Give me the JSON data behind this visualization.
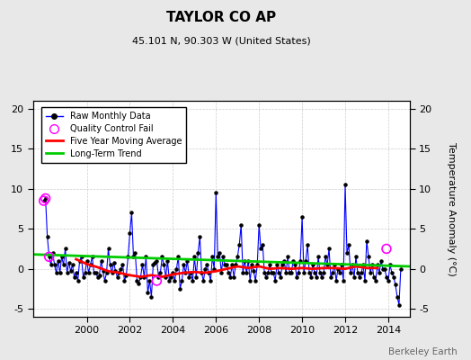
{
  "title": "TAYLOR CO AP",
  "subtitle": "45.101 N, 90.303 W (United States)",
  "ylabel": "Temperature Anomaly (°C)",
  "watermark": "Berkeley Earth",
  "ylim": [
    -6,
    21
  ],
  "yticks": [
    -5,
    0,
    5,
    10,
    15,
    20
  ],
  "xlim": [
    1997.5,
    2015.0
  ],
  "xticks": [
    2000,
    2002,
    2004,
    2006,
    2008,
    2010,
    2012,
    2014
  ],
  "raw_color": "#0000ff",
  "ma_color": "#ff0000",
  "trend_color": "#00cc00",
  "qc_color": "#ff00ff",
  "bg_color": "#e8e8e8",
  "plot_bg": "#ffffff",
  "legend_entries": [
    "Raw Monthly Data",
    "Quality Control Fail",
    "Five Year Moving Average",
    "Long-Term Trend"
  ],
  "raw_x": [
    1998.0,
    1998.083,
    1998.167,
    1998.25,
    1998.333,
    1998.417,
    1998.5,
    1998.583,
    1998.667,
    1998.75,
    1998.833,
    1998.917,
    1999.0,
    1999.083,
    1999.167,
    1999.25,
    1999.333,
    1999.417,
    1999.5,
    1999.583,
    1999.667,
    1999.75,
    1999.833,
    1999.917,
    2000.0,
    2000.083,
    2000.167,
    2000.25,
    2000.333,
    2000.417,
    2000.5,
    2000.583,
    2000.667,
    2000.75,
    2000.833,
    2000.917,
    2001.0,
    2001.083,
    2001.167,
    2001.25,
    2001.333,
    2001.417,
    2001.5,
    2001.583,
    2001.667,
    2001.75,
    2001.833,
    2001.917,
    2002.0,
    2002.083,
    2002.167,
    2002.25,
    2002.333,
    2002.417,
    2002.5,
    2002.583,
    2002.667,
    2002.75,
    2002.833,
    2002.917,
    2003.0,
    2003.083,
    2003.167,
    2003.25,
    2003.333,
    2003.417,
    2003.5,
    2003.583,
    2003.667,
    2003.75,
    2003.833,
    2003.917,
    2004.0,
    2004.083,
    2004.167,
    2004.25,
    2004.333,
    2004.417,
    2004.5,
    2004.583,
    2004.667,
    2004.75,
    2004.833,
    2004.917,
    2005.0,
    2005.083,
    2005.167,
    2005.25,
    2005.333,
    2005.417,
    2005.5,
    2005.583,
    2005.667,
    2005.75,
    2005.833,
    2005.917,
    2006.0,
    2006.083,
    2006.167,
    2006.25,
    2006.333,
    2006.417,
    2006.5,
    2006.583,
    2006.667,
    2006.75,
    2006.833,
    2006.917,
    2007.0,
    2007.083,
    2007.167,
    2007.25,
    2007.333,
    2007.417,
    2007.5,
    2007.583,
    2007.667,
    2007.75,
    2007.833,
    2007.917,
    2008.0,
    2008.083,
    2008.167,
    2008.25,
    2008.333,
    2008.417,
    2008.5,
    2008.583,
    2008.667,
    2008.75,
    2008.833,
    2008.917,
    2009.0,
    2009.083,
    2009.167,
    2009.25,
    2009.333,
    2009.417,
    2009.5,
    2009.583,
    2009.667,
    2009.75,
    2009.833,
    2009.917,
    2010.0,
    2010.083,
    2010.167,
    2010.25,
    2010.333,
    2010.417,
    2010.5,
    2010.583,
    2010.667,
    2010.75,
    2010.833,
    2010.917,
    2011.0,
    2011.083,
    2011.167,
    2011.25,
    2011.333,
    2011.417,
    2011.5,
    2011.583,
    2011.667,
    2011.75,
    2011.833,
    2011.917,
    2012.0,
    2012.083,
    2012.167,
    2012.25,
    2012.333,
    2012.417,
    2012.5,
    2012.583,
    2012.667,
    2012.75,
    2012.833,
    2012.917,
    2013.0,
    2013.083,
    2013.167,
    2013.25,
    2013.333,
    2013.417,
    2013.5,
    2013.583,
    2013.667,
    2013.75,
    2013.833,
    2013.917,
    2014.0,
    2014.083,
    2014.167,
    2014.25,
    2014.333,
    2014.417,
    2014.5,
    2014.583
  ],
  "raw_y": [
    8.5,
    8.8,
    4.0,
    1.5,
    0.5,
    2.0,
    0.5,
    -0.5,
    1.0,
    -0.5,
    1.5,
    0.5,
    2.5,
    -0.5,
    0.8,
    -0.3,
    0.5,
    -1.0,
    -0.5,
    -1.5,
    1.0,
    1.5,
    -1.0,
    -0.5,
    1.0,
    -0.5,
    0.5,
    1.5,
    -0.5,
    -0.5,
    -1.0,
    -0.8,
    1.0,
    -0.3,
    -1.5,
    -0.5,
    2.5,
    0.5,
    -0.5,
    0.8,
    -0.3,
    -1.0,
    -0.5,
    0.0,
    0.5,
    -1.5,
    -0.8,
    1.5,
    4.5,
    7.0,
    1.5,
    2.0,
    -1.5,
    -1.8,
    -1.0,
    0.5,
    -1.0,
    1.5,
    -3.0,
    -1.5,
    -3.5,
    0.5,
    0.8,
    1.0,
    -1.0,
    -0.5,
    1.5,
    0.5,
    -1.0,
    1.0,
    -1.5,
    -1.0,
    -0.5,
    -1.5,
    0.0,
    1.5,
    -2.5,
    -1.5,
    0.5,
    -0.5,
    1.0,
    -1.0,
    -0.5,
    -1.5,
    1.5,
    -1.0,
    2.0,
    4.0,
    -0.5,
    -1.5,
    0.0,
    0.5,
    -0.5,
    -1.5,
    1.5,
    0.0,
    9.5,
    1.5,
    2.0,
    -0.5,
    1.5,
    0.5,
    0.5,
    -0.5,
    -1.0,
    0.5,
    -1.0,
    0.5,
    1.5,
    3.0,
    5.5,
    -0.5,
    1.0,
    -0.5,
    1.0,
    -1.5,
    0.5,
    -0.3,
    -1.5,
    0.5,
    5.5,
    2.5,
    3.0,
    -0.5,
    -1.0,
    -0.5,
    0.5,
    -0.5,
    -0.5,
    -1.5,
    0.5,
    -0.5,
    -1.0,
    0.5,
    1.0,
    -0.5,
    1.5,
    -0.5,
    -0.5,
    1.0,
    0.5,
    -1.0,
    -0.5,
    1.0,
    6.5,
    -0.5,
    1.0,
    3.0,
    -0.5,
    -1.0,
    0.5,
    -0.5,
    -1.0,
    1.5,
    -0.5,
    -1.0,
    -0.5,
    1.5,
    0.5,
    2.5,
    -1.0,
    -0.5,
    0.5,
    -1.5,
    0.0,
    -0.5,
    0.5,
    -1.5,
    10.5,
    2.0,
    3.0,
    -0.5,
    0.5,
    -1.0,
    1.5,
    -0.5,
    -1.0,
    -0.5,
    0.5,
    -1.5,
    3.5,
    1.5,
    -0.5,
    0.5,
    -1.0,
    -1.5,
    0.5,
    -0.5,
    1.0,
    0.0,
    0.0,
    -1.0,
    -1.5,
    0.5,
    -0.5,
    -1.0,
    -2.0,
    -3.5,
    -4.5,
    0.0
  ],
  "qc_x": [
    1998.0,
    1998.083,
    1998.25,
    2003.25,
    2013.917
  ],
  "qc_y": [
    8.5,
    8.8,
    1.5,
    -1.5,
    2.5
  ],
  "ma_x": [
    1999.5,
    2000.0,
    2000.5,
    2001.0,
    2001.5,
    2002.0,
    2002.5,
    2003.0,
    2003.5,
    2004.0,
    2004.5,
    2005.0,
    2005.5,
    2006.0,
    2006.5,
    2007.0,
    2007.5,
    2008.0,
    2008.5,
    2009.0,
    2009.5,
    2010.0,
    2010.5,
    2011.0,
    2011.5,
    2012.0,
    2012.5,
    2013.0,
    2013.5
  ],
  "ma_y": [
    1.2,
    0.6,
    0.2,
    -0.3,
    -0.5,
    -0.8,
    -1.0,
    -0.8,
    -1.0,
    -0.7,
    -0.5,
    -0.4,
    -0.5,
    -0.3,
    0.0,
    0.3,
    0.1,
    0.3,
    0.0,
    0.1,
    0.0,
    0.1,
    0.0,
    0.1,
    0.1,
    0.0,
    0.3,
    0.1,
    0.1
  ],
  "trend_x": [
    1997.5,
    2015.0
  ],
  "trend_y": [
    1.8,
    0.3
  ]
}
